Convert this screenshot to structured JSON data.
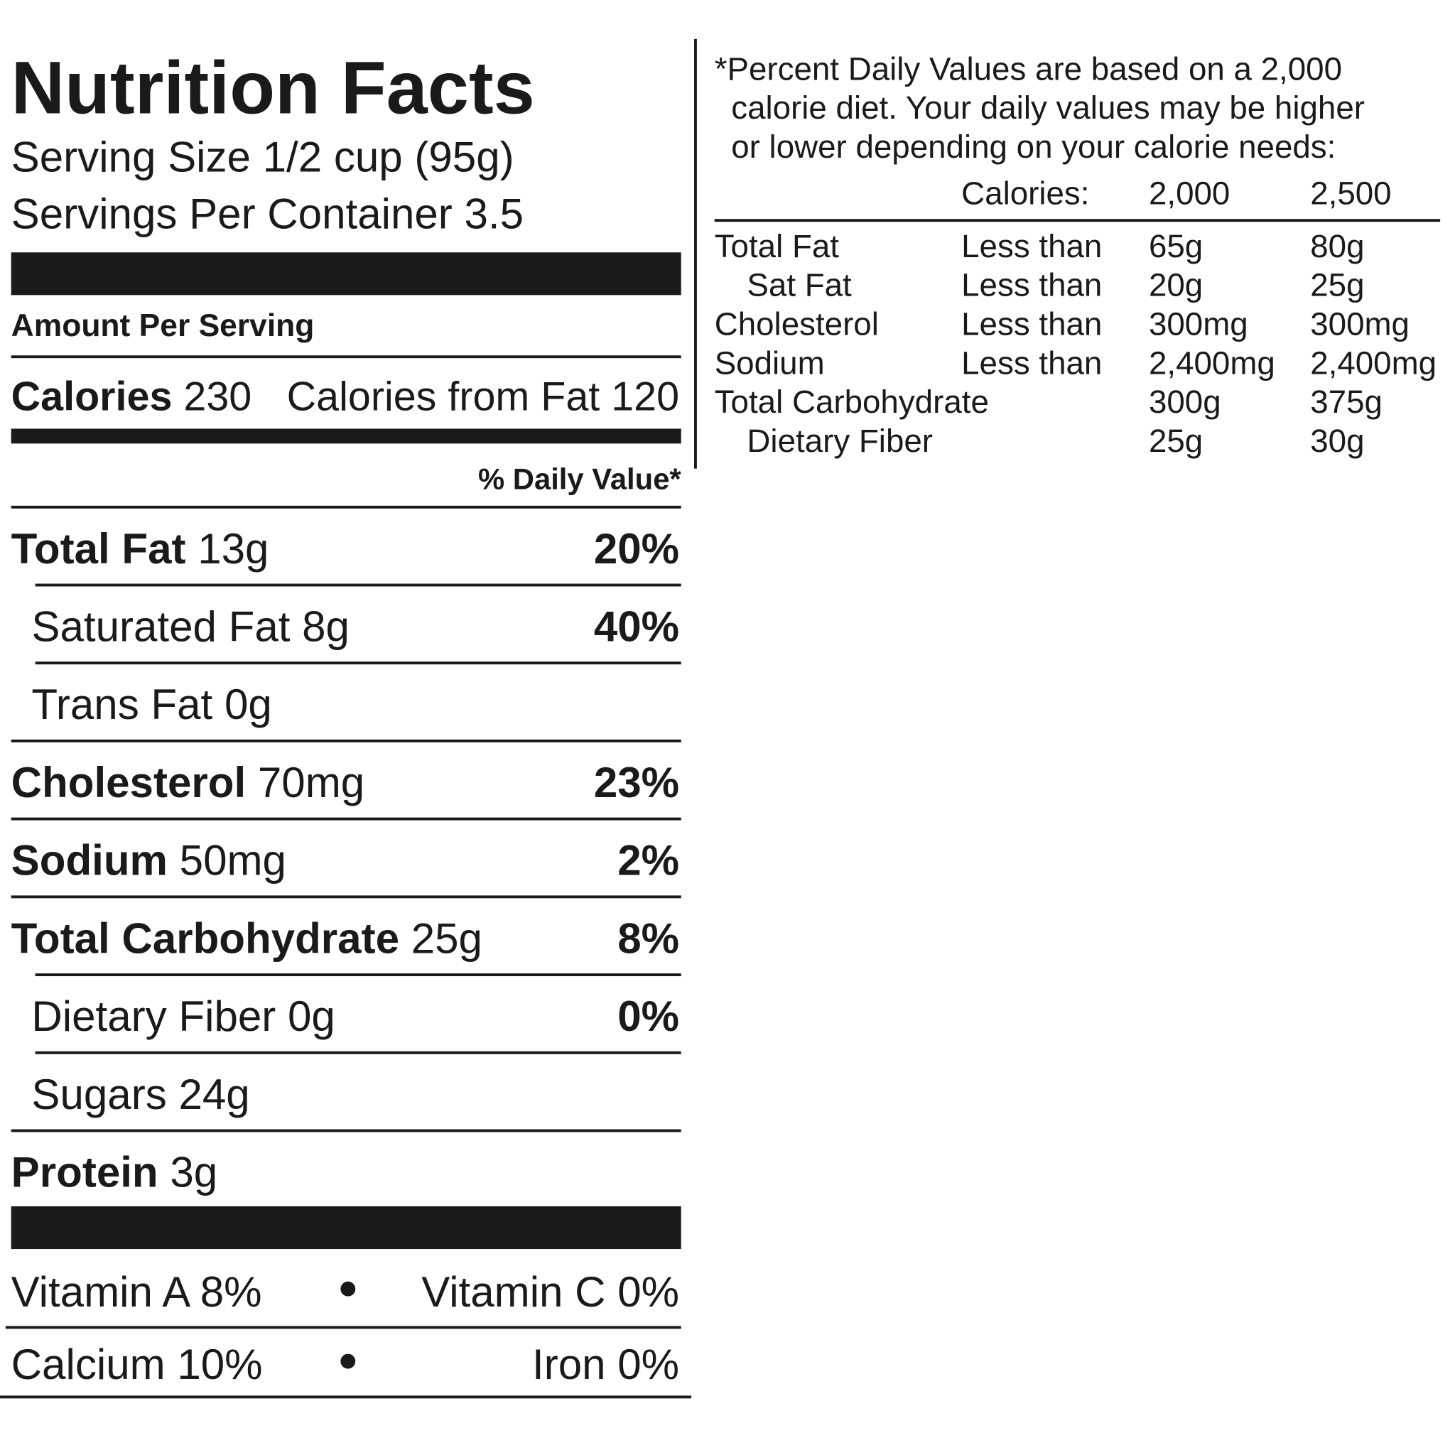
{
  "header": {
    "title": "Nutrition Facts",
    "serving_size": "Serving Size 1/2 cup (95g)",
    "servings_per_container": "Servings Per Container 3.5"
  },
  "amount_per_serving": "Amount Per Serving",
  "calories": {
    "label": "Calories",
    "value": "230",
    "from_fat": "Calories from Fat 120"
  },
  "daily_value_header": "% Daily Value*",
  "nutrients": [
    {
      "label": "Total Fat",
      "amount": "13g",
      "dv": "20%",
      "indent": false
    },
    {
      "label": "Saturated Fat",
      "amount": "8g",
      "dv": "40%",
      "indent": true
    },
    {
      "label": "Trans Fat",
      "amount": "0g",
      "indent": true
    },
    {
      "label": "Cholesterol",
      "amount": "70mg",
      "dv": "23%",
      "indent": false
    },
    {
      "label": "Sodium",
      "amount": "50mg",
      "dv": "2%",
      "indent": false
    },
    {
      "label": "Total Carbohydrate",
      "amount": "25g",
      "dv": "8%",
      "indent": false
    },
    {
      "label": "Dietary Fiber",
      "amount": "0g",
      "dv": "0%",
      "indent": true
    },
    {
      "label": "Sugars",
      "amount": "24g",
      "indent": true
    },
    {
      "label": "Protein",
      "amount": "3g",
      "indent": false
    }
  ],
  "vitamins": [
    [
      "Vitamin A 8%",
      "Vitamin C 0%"
    ],
    [
      "Calcium 10%",
      "Iron 0%"
    ]
  ],
  "footnote": {
    "text": [
      "*Percent Daily Values are based on a 2,000",
      "calorie diet. Your daily values may be higher",
      "or lower depending on your calorie needs:"
    ],
    "columns": [
      "Calories:",
      "2,000",
      "2,500"
    ],
    "rows": [
      {
        "label": "Total Fat",
        "qualifier": "Less than",
        "v2000": "65g",
        "v2500": "80g",
        "indent": false
      },
      {
        "label": "Sat Fat",
        "qualifier": "Less than",
        "v2000": "20g",
        "v2500": "25g",
        "indent": true
      },
      {
        "label": "Cholesterol",
        "qualifier": "Less than",
        "v2000": "300mg",
        "v2500": "300mg",
        "indent": false
      },
      {
        "label": "Sodium",
        "qualifier": "Less than",
        "v2000": "2,400mg",
        "v2500": "2,400mg",
        "indent": false
      },
      {
        "label": "Total Carbohydrate",
        "v2000": "300g",
        "v2500": "375g",
        "indent": false
      },
      {
        "label": "Dietary Fiber",
        "v2000": "25g",
        "v2500": "30g",
        "indent": true
      }
    ]
  }
}
